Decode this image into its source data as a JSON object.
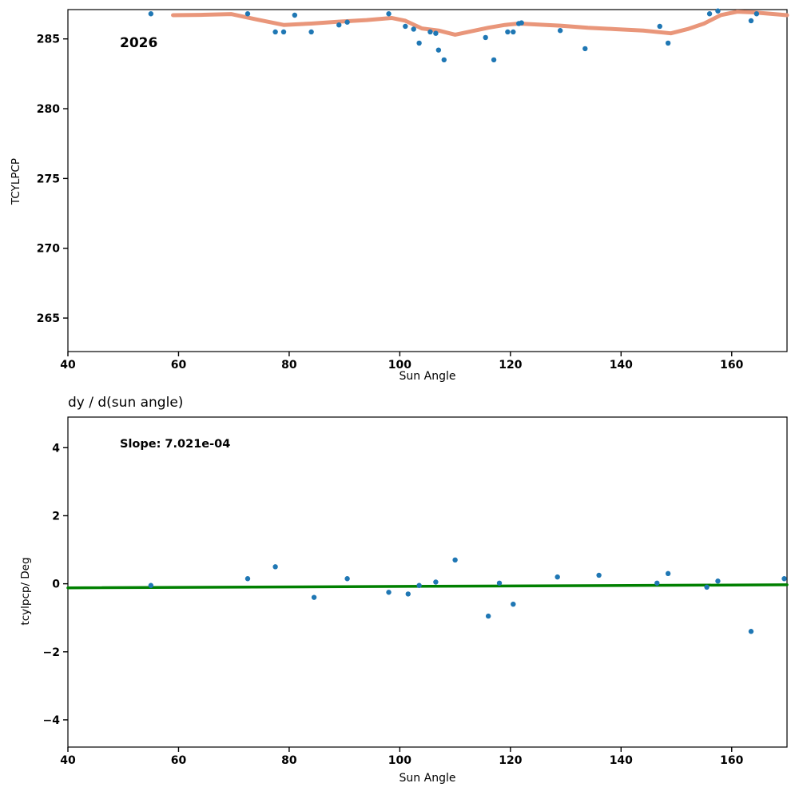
{
  "figure": {
    "background": "#ffffff"
  },
  "chart_data": [
    {
      "type": "scatter",
      "title": "",
      "annotation": "2026",
      "xlabel": "Sun Angle",
      "ylabel": "TCYLPCP",
      "xlim": [
        40,
        170
      ],
      "ylim": [
        262.6,
        287.1
      ],
      "xticks": [
        40,
        60,
        80,
        100,
        120,
        140,
        160
      ],
      "yticks": [
        265,
        270,
        275,
        280,
        285
      ],
      "grid": false,
      "legend": "none",
      "scatter_color": "#1f77b4",
      "scatter": {
        "x": [
          55,
          72.5,
          77.5,
          79,
          81,
          84,
          89,
          90.5,
          98,
          101,
          102.5,
          103.5,
          105.5,
          106.5,
          107,
          108,
          115.5,
          117,
          119.5,
          120.5,
          121.5,
          122,
          129,
          133.5,
          147,
          148.5,
          156,
          157.5,
          163.5,
          164.5
        ],
        "y": [
          286.8,
          286.8,
          285.5,
          285.5,
          286.7,
          285.5,
          286.0,
          286.2,
          286.8,
          285.9,
          285.7,
          284.7,
          285.5,
          285.4,
          284.2,
          283.5,
          285.1,
          283.5,
          285.5,
          285.5,
          286.1,
          286.15,
          285.6,
          284.3,
          285.9,
          284.7,
          286.8,
          287.0,
          286.3,
          286.8
        ]
      },
      "lines": [
        {
          "name": "smoothed-trend",
          "color": "#e9967a",
          "width": 5,
          "x": [
            59,
            64,
            69.5,
            74,
            79,
            84,
            89.5,
            94,
            98.5,
            101,
            104,
            107,
            110,
            113,
            116,
            119,
            121.5,
            124,
            129,
            134,
            139,
            144,
            149,
            152,
            155,
            158,
            161,
            164,
            167,
            170
          ],
          "y": [
            286.7,
            286.72,
            286.78,
            286.4,
            286.0,
            286.1,
            286.25,
            286.35,
            286.5,
            286.3,
            285.75,
            285.6,
            285.3,
            285.55,
            285.8,
            286.0,
            286.1,
            286.05,
            285.95,
            285.8,
            285.7,
            285.6,
            285.4,
            285.7,
            286.1,
            286.7,
            286.95,
            286.9,
            286.8,
            286.7
          ]
        }
      ]
    },
    {
      "type": "scatter",
      "title": "dy / d(sun angle)",
      "annotation": "Slope: 7.021e-04",
      "slope": "7.021e-04",
      "xlabel": "Sun Angle",
      "ylabel": "tcylpcp/ Deg",
      "xlim": [
        40,
        170
      ],
      "ylim": [
        -4.8,
        4.9
      ],
      "xticks": [
        40,
        60,
        80,
        100,
        120,
        140,
        160
      ],
      "yticks": [
        -4,
        -2,
        0,
        2,
        4
      ],
      "grid": false,
      "legend": "none",
      "scatter_color": "#1f77b4",
      "scatter": {
        "x": [
          55,
          72.5,
          77.5,
          84.5,
          90.5,
          98,
          101.5,
          103.5,
          106.5,
          110,
          116,
          118,
          120.5,
          128.5,
          136,
          146.5,
          148.5,
          155.5,
          157.5,
          163.5,
          169.5
        ],
        "y": [
          -0.05,
          0.15,
          0.5,
          -0.4,
          0.15,
          -0.25,
          -0.3,
          -0.05,
          0.05,
          0.7,
          -0.95,
          0.02,
          -0.6,
          0.2,
          0.25,
          0.02,
          0.3,
          -0.1,
          0.08,
          -1.4,
          0.15
        ]
      },
      "lines": [
        {
          "name": "linear-fit",
          "color": "#008000",
          "width": 3.5,
          "x": [
            40,
            170
          ],
          "y": [
            -0.12,
            -0.03
          ]
        }
      ]
    }
  ]
}
